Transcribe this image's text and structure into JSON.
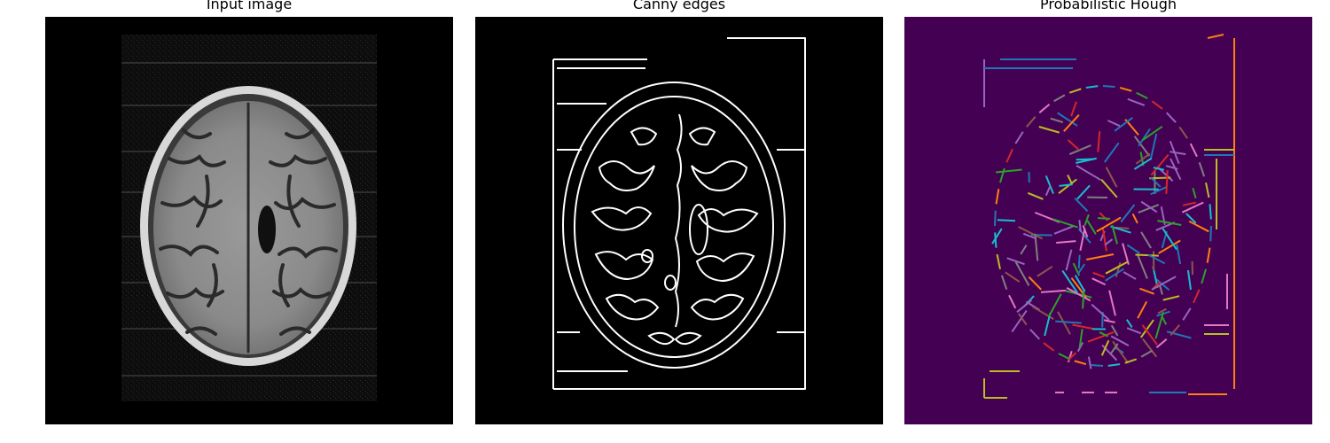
{
  "figure": {
    "panels": [
      {
        "title": "Input image",
        "content": "mri-axial-brain-slice",
        "background": "#000000"
      },
      {
        "title": "Canny edges",
        "content": "edge-map",
        "background": "#000000",
        "edge_color": "#ffffff"
      },
      {
        "title": "Probabilistic Hough",
        "content": "line-segments",
        "background": "#440154",
        "segment_colors": [
          "#1f77b4",
          "#ff7f0e",
          "#2ca02c",
          "#d62728",
          "#9467bd",
          "#8c564b",
          "#e377c2",
          "#7f7f7f",
          "#bcbd22",
          "#17becf"
        ]
      }
    ]
  }
}
